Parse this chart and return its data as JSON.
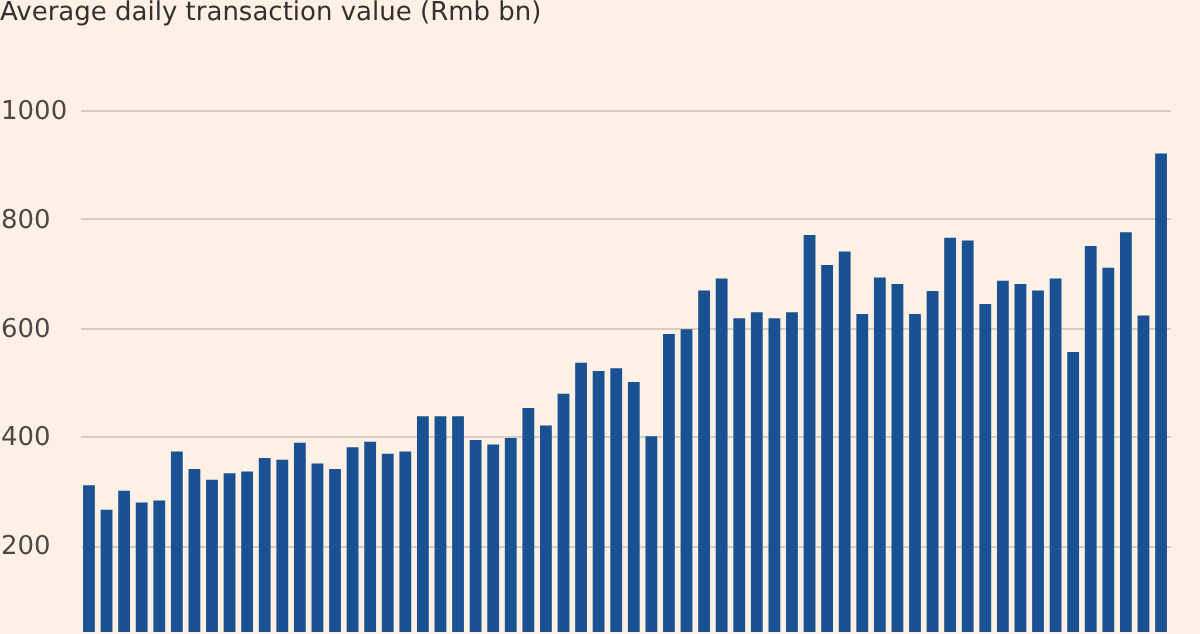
{
  "chart_data": {
    "type": "bar",
    "title": "Average daily transaction value (Rmb bn)",
    "categories": [
      null,
      null,
      null,
      null,
      null,
      null,
      null,
      null,
      null,
      null,
      null,
      null,
      null,
      null,
      null,
      null,
      null,
      null,
      null,
      null,
      null,
      null,
      null,
      null,
      null,
      null,
      null,
      null,
      null,
      null,
      null,
      null,
      null,
      null,
      null,
      null,
      null,
      null,
      null,
      null,
      null,
      null,
      null,
      null,
      null,
      null,
      null,
      null,
      null,
      null,
      null,
      null,
      null,
      null,
      null,
      null,
      null,
      null,
      null,
      null,
      null,
      null
    ],
    "values": [
      310,
      265,
      300,
      278,
      282,
      372,
      340,
      320,
      332,
      335,
      360,
      357,
      388,
      350,
      340,
      380,
      390,
      368,
      372,
      437,
      437,
      437,
      393,
      385,
      397,
      452,
      420,
      478,
      535,
      520,
      525,
      500,
      400,
      588,
      597,
      668,
      690,
      617,
      628,
      617,
      628,
      770,
      715,
      740,
      625,
      692,
      680,
      625,
      667,
      765,
      760,
      643,
      686,
      680,
      668,
      690,
      555,
      750,
      710,
      775,
      622,
      920
    ],
    "color": "#1a5192",
    "ylim": [
      40,
      1000
    ],
    "yticks": [
      200,
      400,
      600,
      800,
      1000
    ],
    "grid": "y",
    "tick_labels": "y"
  }
}
